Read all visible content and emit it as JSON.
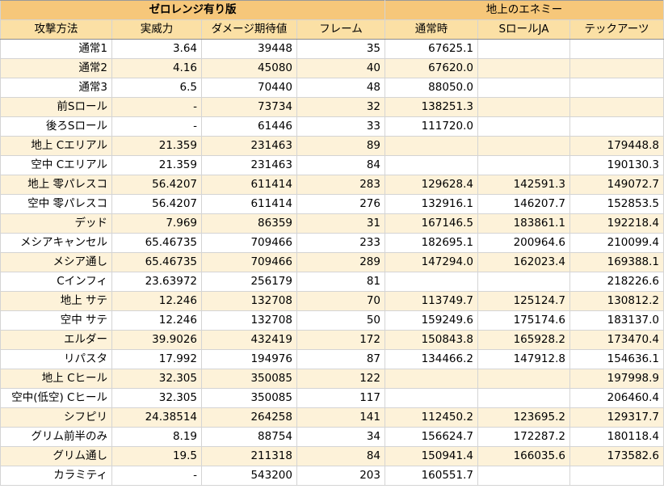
{
  "header": {
    "group1": "ゼロレンジ有り版",
    "group2": "地上のエネミー"
  },
  "columns": [
    "攻撃方法",
    "実威力",
    "ダメージ期待値",
    "フレーム",
    "通常時",
    "SロールJA",
    "テックアーツ"
  ],
  "rows": [
    {
      "name": "通常1",
      "power": "3.64",
      "expected": "39448",
      "frames": "35",
      "normal": "67625.1",
      "sroll": "",
      "tech": ""
    },
    {
      "name": "通常2",
      "power": "4.16",
      "expected": "45080",
      "frames": "40",
      "normal": "67620.0",
      "sroll": "",
      "tech": ""
    },
    {
      "name": "通常3",
      "power": "6.5",
      "expected": "70440",
      "frames": "48",
      "normal": "88050.0",
      "sroll": "",
      "tech": ""
    },
    {
      "name": "前Sロール",
      "power": "-",
      "expected": "73734",
      "frames": "32",
      "normal": "138251.3",
      "sroll": "",
      "tech": ""
    },
    {
      "name": "後ろSロール",
      "power": "-",
      "expected": "61446",
      "frames": "33",
      "normal": "111720.0",
      "sroll": "",
      "tech": ""
    },
    {
      "name": "地上 Cエリアル",
      "power": "21.359",
      "expected": "231463",
      "frames": "89",
      "normal": "",
      "sroll": "",
      "tech": "179448.8"
    },
    {
      "name": "空中 Cエリアル",
      "power": "21.359",
      "expected": "231463",
      "frames": "84",
      "normal": "",
      "sroll": "",
      "tech": "190130.3"
    },
    {
      "name": "地上 零パレスコ",
      "power": "56.4207",
      "expected": "611414",
      "frames": "283",
      "normal": "129628.4",
      "sroll": "142591.3",
      "tech": "149072.7"
    },
    {
      "name": "空中 零パレスコ",
      "power": "56.4207",
      "expected": "611414",
      "frames": "276",
      "normal": "132916.1",
      "sroll": "146207.7",
      "tech": "152853.5"
    },
    {
      "name": "デッド",
      "power": "7.969",
      "expected": "86359",
      "frames": "31",
      "normal": "167146.5",
      "sroll": "183861.1",
      "tech": "192218.4"
    },
    {
      "name": "メシアキャンセル",
      "power": "65.46735",
      "expected": "709466",
      "frames": "233",
      "normal": "182695.1",
      "sroll": "200964.6",
      "tech": "210099.4"
    },
    {
      "name": "メシア通し",
      "power": "65.46735",
      "expected": "709466",
      "frames": "289",
      "normal": "147294.0",
      "sroll": "162023.4",
      "tech": "169388.1"
    },
    {
      "name": "Cインフィ",
      "power": "23.63972",
      "expected": "256179",
      "frames": "81",
      "normal": "",
      "sroll": "",
      "tech": "218226.6"
    },
    {
      "name": "地上 サテ",
      "power": "12.246",
      "expected": "132708",
      "frames": "70",
      "normal": "113749.7",
      "sroll": "125124.7",
      "tech": "130812.2"
    },
    {
      "name": "空中 サテ",
      "power": "12.246",
      "expected": "132708",
      "frames": "50",
      "normal": "159249.6",
      "sroll": "175174.6",
      "tech": "183137.0"
    },
    {
      "name": "エルダー",
      "power": "39.9026",
      "expected": "432419",
      "frames": "172",
      "normal": "150843.8",
      "sroll": "165928.2",
      "tech": "173470.4"
    },
    {
      "name": "リパスタ",
      "power": "17.992",
      "expected": "194976",
      "frames": "87",
      "normal": "134466.2",
      "sroll": "147912.8",
      "tech": "154636.1"
    },
    {
      "name": "地上 Cヒール",
      "power": "32.305",
      "expected": "350085",
      "frames": "122",
      "normal": "",
      "sroll": "",
      "tech": "197998.9"
    },
    {
      "name": "空中(低空) Cヒール",
      "power": "32.305",
      "expected": "350085",
      "frames": "117",
      "normal": "",
      "sroll": "",
      "tech": "206460.4"
    },
    {
      "name": "シフピリ",
      "power": "24.38514",
      "expected": "264258",
      "frames": "141",
      "normal": "112450.2",
      "sroll": "123695.2",
      "tech": "129317.7"
    },
    {
      "name": "グリム前半のみ",
      "power": "8.19",
      "expected": "88754",
      "frames": "34",
      "normal": "156624.7",
      "sroll": "172287.2",
      "tech": "180118.4"
    },
    {
      "name": "グリム通し",
      "power": "19.5",
      "expected": "211318",
      "frames": "84",
      "normal": "150941.4",
      "sroll": "166035.6",
      "tech": "173582.6"
    },
    {
      "name": "カラミティ",
      "power": "-",
      "expected": "543200",
      "frames": "203",
      "normal": "160551.7",
      "sroll": "",
      "tech": ""
    }
  ]
}
